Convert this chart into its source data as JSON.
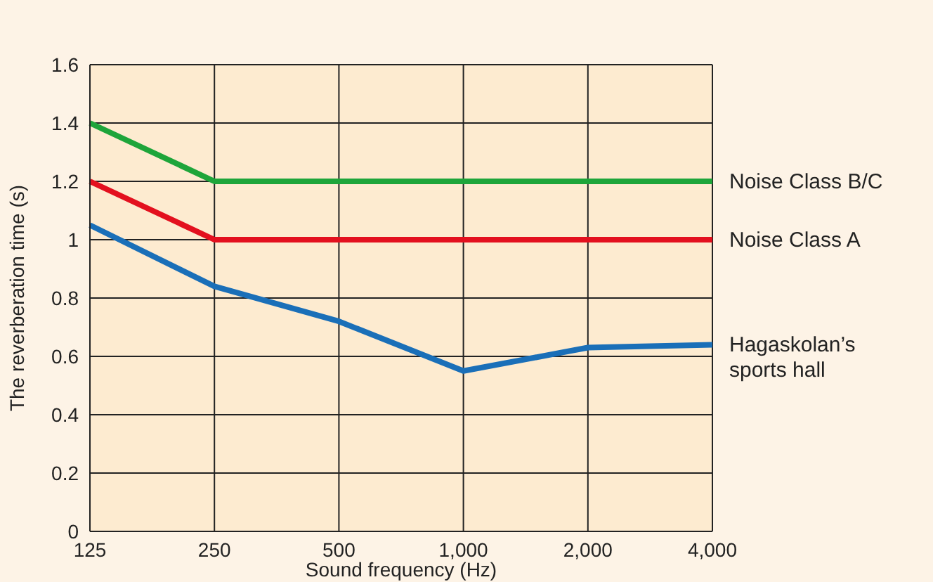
{
  "chart_data": {
    "type": "line",
    "xlabel": "Sound frequency (Hz)",
    "ylabel": "The reverberation time (s)",
    "categories": [
      "125",
      "250",
      "500",
      "1,000",
      "2,000",
      "4,000"
    ],
    "series": [
      {
        "name": "Noise Class B/C",
        "color": "#1ea53a",
        "values": [
          1.4,
          1.2,
          1.2,
          1.2,
          1.2,
          1.2
        ]
      },
      {
        "name": "Noise Class A",
        "color": "#e3101e",
        "values": [
          1.2,
          1,
          1,
          1,
          1,
          1
        ]
      },
      {
        "name": "Hagaskolan’s sports hall",
        "color": "#1a6fb8",
        "values": [
          1.05,
          0.84,
          0.72,
          0.55,
          0.63,
          0.64
        ]
      }
    ],
    "ylim": [
      0,
      1.6
    ],
    "yticks": [
      0,
      0.2,
      0.4,
      0.6,
      0.8,
      1,
      1.2,
      1.4,
      1.6
    ],
    "grid": true,
    "marker": "none",
    "line_style": "solid"
  }
}
